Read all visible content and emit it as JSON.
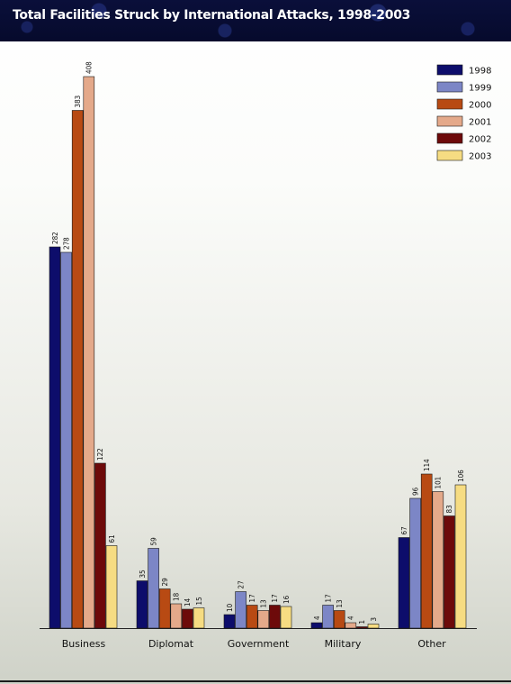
{
  "header": {
    "title": "Total Facilities Struck by International Attacks, 1998-2003"
  },
  "colors": {
    "1998": "#0d0d6b",
    "1999": "#7c86c6",
    "2000": "#b84a13",
    "2001": "#e4a98a",
    "2002": "#6d0a0a",
    "2003": "#f6dc82"
  },
  "chart_data": {
    "type": "bar",
    "title": "Total Facilities Struck by International Attacks, 1998-2003",
    "xlabel": "",
    "ylabel": "",
    "ylim": [
      0,
      410
    ],
    "grid": false,
    "legend_position": "top-right",
    "categories": [
      "Business",
      "Diplomat",
      "Government",
      "Military",
      "Other"
    ],
    "series": [
      {
        "name": "1998",
        "values": [
          282,
          35,
          10,
          4,
          67
        ]
      },
      {
        "name": "1999",
        "values": [
          278,
          59,
          27,
          17,
          96
        ]
      },
      {
        "name": "2000",
        "values": [
          383,
          29,
          17,
          13,
          114
        ]
      },
      {
        "name": "2001",
        "values": [
          408,
          18,
          13,
          4,
          101
        ]
      },
      {
        "name": "2002",
        "values": [
          122,
          14,
          17,
          1,
          83
        ]
      },
      {
        "name": "2003",
        "values": [
          61,
          15,
          16,
          3,
          106
        ]
      }
    ]
  }
}
